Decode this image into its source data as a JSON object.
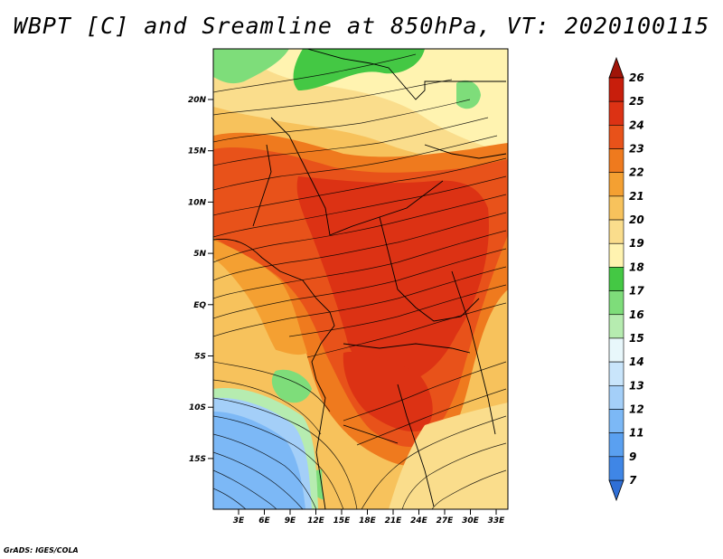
{
  "title": "WBPT [C] and Sreamline at 850hPa, VT: 2020100115",
  "credit": "GrADS: IGES/COLA",
  "map": {
    "lat_ticks": [
      "20N",
      "15N",
      "10N",
      "5N",
      "EQ",
      "5S",
      "10S",
      "15S"
    ],
    "lon_ticks": [
      "3E",
      "6E",
      "9E",
      "12E",
      "15E",
      "18E",
      "21E",
      "24E",
      "27E",
      "30E",
      "33E"
    ]
  },
  "colorbar": {
    "levels": [
      "7",
      "9",
      "11",
      "12",
      "13",
      "14",
      "15",
      "16",
      "17",
      "18",
      "19",
      "20",
      "21",
      "22",
      "23",
      "24",
      "25",
      "26"
    ],
    "colors": [
      "#2f6fd6",
      "#3f86e6",
      "#5aa0f0",
      "#7cb8f6",
      "#a4cff8",
      "#c9e5fb",
      "#e8f7fb",
      "#b6ecb0",
      "#7edd7a",
      "#44c844",
      "#fff3b0",
      "#fadd8c",
      "#f7c25c",
      "#f4a032",
      "#ef7a1e",
      "#e8521a",
      "#dc3214",
      "#c81e0c",
      "#a01408"
    ]
  }
}
